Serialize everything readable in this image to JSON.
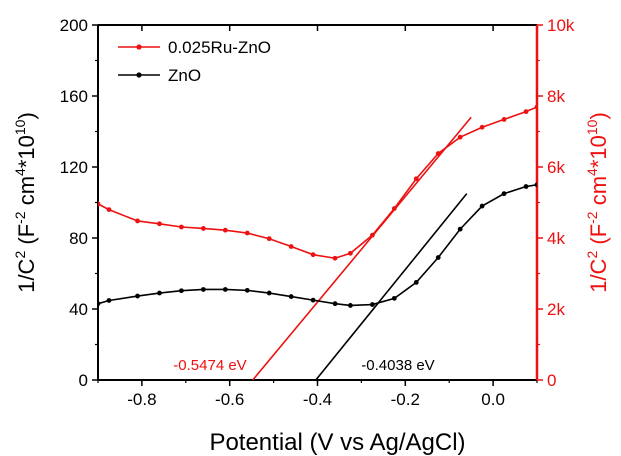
{
  "chart_data": {
    "type": "line",
    "xlabel": "Potential (V vs Ag/AgCl)",
    "ylabel_left": {
      "base": "1/C",
      "sup1": "2",
      "mid": " (F",
      "sup2": "-2",
      "mid2": " cm",
      "sup3": "4",
      "mid3": "*10",
      "sup4": "10",
      "end": ")"
    },
    "ylabel_right": {
      "base": "1/C",
      "sup1": "2",
      "mid": " (F",
      "sup2": "-2",
      "mid2": " cm",
      "sup3": "4",
      "mid3": "*10",
      "sup4": "10",
      "end": ")"
    },
    "xlim": [
      -0.9,
      0.1
    ],
    "ylim_left": [
      0,
      200
    ],
    "ylim_right": [
      0,
      10000
    ],
    "x_ticks": [
      -0.8,
      -0.6,
      -0.4,
      -0.2,
      0.0
    ],
    "x_tick_labels": [
      "-0.8",
      "-0.6",
      "-0.4",
      "-0.2",
      "0.0"
    ],
    "y_left_ticks": [
      0,
      40,
      80,
      120,
      160,
      200
    ],
    "y_left_tick_labels": [
      "0",
      "40",
      "80",
      "120",
      "160",
      "200"
    ],
    "y_right_ticks": [
      0,
      2000,
      4000,
      6000,
      8000,
      10000
    ],
    "y_right_tick_labels": [
      "0",
      "2k",
      "4k",
      "6k",
      "8k",
      "10k"
    ],
    "colors": {
      "ZnO": "#000000",
      "Ru": "#ee1111"
    },
    "legend_position": "top-left",
    "series": [
      {
        "name": "0.025Ru-ZnO",
        "axis": "right",
        "color": "#ee1111",
        "x": [
          -0.9,
          -0.875,
          -0.81,
          -0.76,
          -0.71,
          -0.66,
          -0.61,
          -0.56,
          -0.51,
          -0.46,
          -0.41,
          -0.36,
          -0.325,
          -0.275,
          -0.225,
          -0.175,
          -0.125,
          -0.075,
          -0.025,
          0.025,
          0.075,
          0.1
        ],
        "y": [
          4960,
          4800,
          4480,
          4400,
          4310,
          4270,
          4220,
          4140,
          3980,
          3760,
          3530,
          3430,
          3570,
          4080,
          4830,
          5670,
          6380,
          6840,
          7120,
          7340,
          7560,
          7690
        ]
      },
      {
        "name": "ZnO",
        "axis": "left",
        "color": "#000000",
        "x": [
          -0.9,
          -0.875,
          -0.81,
          -0.76,
          -0.71,
          -0.66,
          -0.61,
          -0.56,
          -0.51,
          -0.46,
          -0.41,
          -0.36,
          -0.325,
          -0.275,
          -0.225,
          -0.175,
          -0.125,
          -0.075,
          -0.025,
          0.025,
          0.075,
          0.1
        ],
        "y": [
          43,
          44.8,
          47.3,
          49,
          50.3,
          51,
          51,
          50.5,
          49,
          47,
          45,
          43,
          42,
          42.5,
          46,
          55,
          69,
          85,
          98,
          105,
          109,
          110
        ]
      }
    ],
    "fit_lines": [
      {
        "series": "0.025Ru-ZnO",
        "axis": "right",
        "color": "#ee1111",
        "x": [
          -0.5474,
          -0.05
        ],
        "y": [
          0,
          7400
        ],
        "label": "-0.5474 eV"
      },
      {
        "series": "ZnO",
        "axis": "left",
        "color": "#000000",
        "x": [
          -0.4038,
          -0.06
        ],
        "y": [
          0,
          105
        ],
        "label": "-0.4038 eV"
      }
    ]
  }
}
